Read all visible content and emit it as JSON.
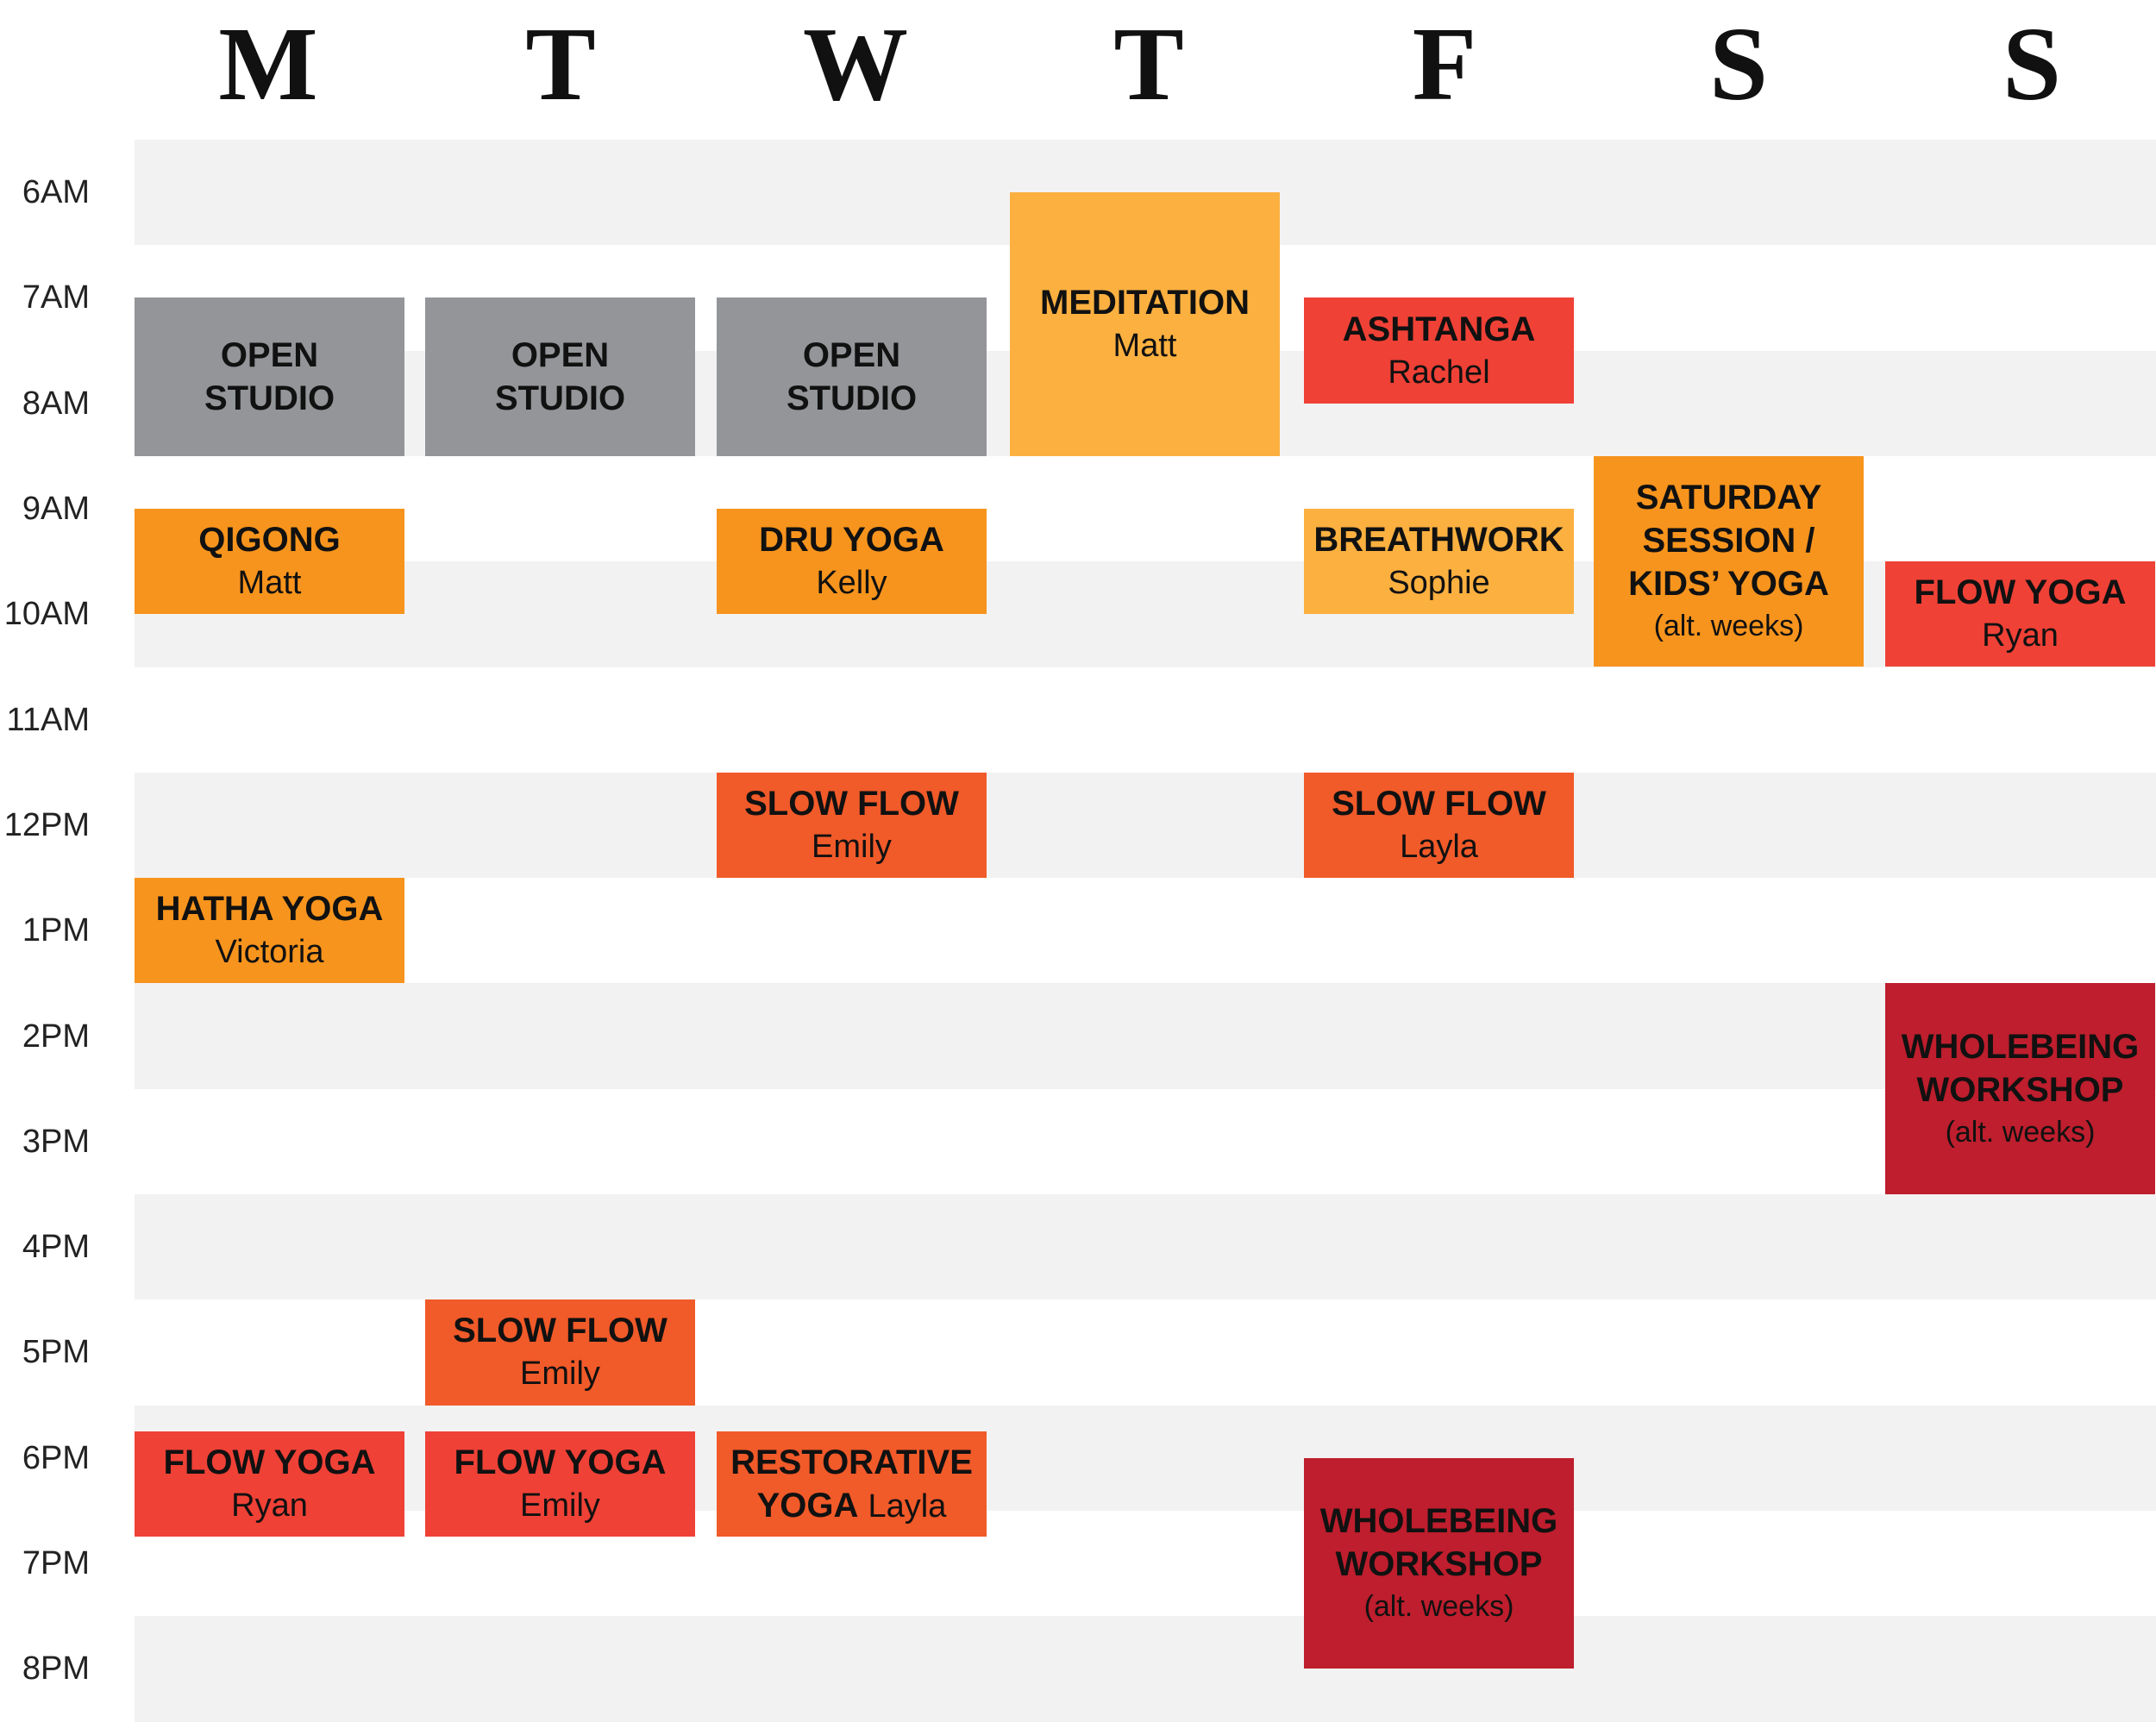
{
  "days": [
    "M",
    "T",
    "W",
    "T",
    "F",
    "S",
    "S"
  ],
  "times": [
    "6AM",
    "7AM",
    "8AM",
    "9AM",
    "10AM",
    "11AM",
    "12PM",
    "1PM",
    "2PM",
    "3PM",
    "4PM",
    "5PM",
    "6PM",
    "7PM",
    "8PM"
  ],
  "colors": {
    "open_studio": "#939598",
    "meditation": "#fbb040",
    "breathwork": "#fbb040",
    "qigong": "#f7941d",
    "hatha": "#f7941d",
    "saturday": "#f7941d",
    "slow_flow": "#f15a29",
    "restorative": "#f15a29",
    "flow_yoga": "#ef4136",
    "ashtanga": "#ef4136",
    "workshop": "#be1e2d",
    "band_gray": "#f2f2f2",
    "band_white": "#ffffff"
  },
  "classes": [
    {
      "day": 0,
      "start": 7.0,
      "end": 8.5,
      "color": "open_studio",
      "name": "OPEN\nSTUDIO",
      "instructor": "",
      "note": ""
    },
    {
      "day": 1,
      "start": 7.0,
      "end": 8.5,
      "color": "open_studio",
      "name": "OPEN\nSTUDIO",
      "instructor": "",
      "note": ""
    },
    {
      "day": 2,
      "start": 7.0,
      "end": 8.5,
      "color": "open_studio",
      "name": "OPEN\nSTUDIO",
      "instructor": "",
      "note": ""
    },
    {
      "day": 3,
      "start": 6.0,
      "end": 8.5,
      "color": "meditation",
      "name": "MEDITATION",
      "instructor": "Matt",
      "note": ""
    },
    {
      "day": 4,
      "start": 7.0,
      "end": 8.0,
      "color": "ashtanga",
      "name": "ASHTANGA",
      "instructor": "Rachel",
      "note": ""
    },
    {
      "day": 0,
      "start": 9.0,
      "end": 10.0,
      "color": "qigong",
      "name": "QIGONG",
      "instructor": "Matt",
      "note": ""
    },
    {
      "day": 2,
      "start": 9.0,
      "end": 10.0,
      "color": "qigong",
      "name": "DRU YOGA",
      "instructor": "Kelly",
      "note": ""
    },
    {
      "day": 4,
      "start": 9.0,
      "end": 10.0,
      "color": "breathwork",
      "name": "BREATHWORK",
      "instructor": "Sophie",
      "note": ""
    },
    {
      "day": 5,
      "start": 8.5,
      "end": 10.5,
      "color": "saturday",
      "name": "SATURDAY\nSESSION /\nKIDS’ YOGA",
      "instructor": "",
      "note": "(alt. weeks)"
    },
    {
      "day": 6,
      "start": 9.5,
      "end": 10.5,
      "color": "flow_yoga",
      "name": "FLOW YOGA",
      "instructor": "Ryan",
      "note": ""
    },
    {
      "day": 2,
      "start": 11.5,
      "end": 12.5,
      "color": "slow_flow",
      "name": "SLOW FLOW",
      "instructor": "Emily",
      "note": ""
    },
    {
      "day": 4,
      "start": 11.5,
      "end": 12.5,
      "color": "slow_flow",
      "name": "SLOW FLOW",
      "instructor": "Layla",
      "note": ""
    },
    {
      "day": 0,
      "start": 12.5,
      "end": 13.5,
      "color": "hatha",
      "name": "HATHA YOGA",
      "instructor": "Victoria",
      "note": ""
    },
    {
      "day": 6,
      "start": 13.5,
      "end": 15.5,
      "color": "workshop",
      "name": "WHOLEBEING\nWORKSHOP",
      "instructor": "",
      "note": "(alt. weeks)"
    },
    {
      "day": 1,
      "start": 16.5,
      "end": 17.5,
      "color": "slow_flow",
      "name": "SLOW FLOW",
      "instructor": "Emily",
      "note": ""
    },
    {
      "day": 0,
      "start": 17.75,
      "end": 18.75,
      "color": "flow_yoga",
      "name": "FLOW YOGA",
      "instructor": "Ryan",
      "note": ""
    },
    {
      "day": 1,
      "start": 17.75,
      "end": 18.75,
      "color": "flow_yoga",
      "name": "FLOW YOGA",
      "instructor": "Emily",
      "note": ""
    },
    {
      "day": 2,
      "start": 17.75,
      "end": 18.75,
      "color": "restorative",
      "name": "RESTORATIVE",
      "name2": "YOGA",
      "instructor": "Layla",
      "note": ""
    },
    {
      "day": 4,
      "start": 18.0,
      "end": 20.0,
      "color": "workshop",
      "name": "WHOLEBEING\nWORKSHOP",
      "instructor": "",
      "note": "(alt. weeks)"
    }
  ]
}
